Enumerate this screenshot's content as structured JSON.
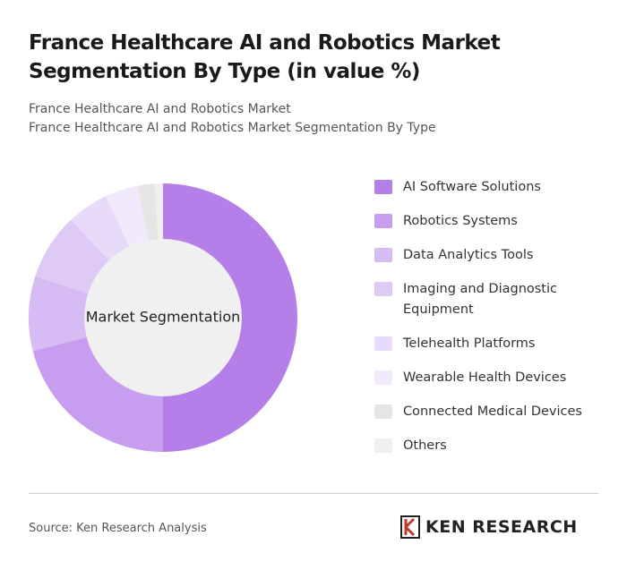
{
  "chart_data": {
    "type": "donut",
    "title": "France Healthcare AI and Robotics Market Segmentation By Type (in value %)",
    "subtitle": [
      "France Healthcare AI and Robotics Market",
      "France Healthcare AI and Robotics Market Segmentation By Type"
    ],
    "center_label": "Market Segmentation",
    "categories": [
      "AI Software Solutions",
      "Robotics Systems",
      "Data Analytics Tools",
      "Imaging and Diagnostic Equipment",
      "Telehealth Platforms",
      "Wearable Health Devices",
      "Connected Medical Devices",
      "Others"
    ],
    "values": [
      50,
      21,
      9,
      8,
      5,
      4,
      2,
      1
    ],
    "colors": [
      "#b57fe9",
      "#c79df0",
      "#d7bbf4",
      "#dfcaf6",
      "#e8dbf9",
      "#f1eafc",
      "#e5e5e5",
      "#efefef"
    ],
    "legend": "right"
  },
  "source": "Source: Ken Research Analysis",
  "logo": "KEN RESEARCH"
}
